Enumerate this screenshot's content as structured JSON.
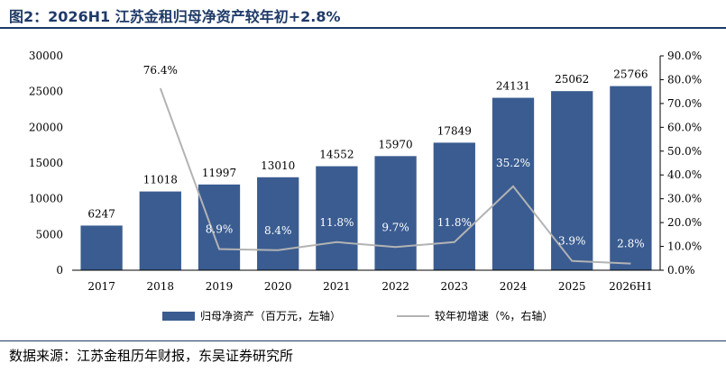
{
  "title": "图2：2026H1 江苏金租归母净资产较年初+2.8%",
  "source": "数据来源：江苏金租历年财报，东吴证券研究所",
  "colors": {
    "bar": "#3a5c91",
    "line": "#b3b3b3",
    "title": "#1f3a68"
  },
  "chart_data": {
    "type": "bar+line",
    "categories": [
      "2017",
      "2018",
      "2019",
      "2020",
      "2021",
      "2022",
      "2023",
      "2024",
      "2025",
      "2026H1"
    ],
    "series": [
      {
        "name": "归母净资产（百万元，左轴）",
        "type": "bar",
        "axis": "left",
        "values": [
          6247,
          11018,
          11997,
          13010,
          14552,
          15970,
          17849,
          24131,
          25062,
          25766
        ],
        "labels": [
          "6247",
          "11018",
          "11997",
          "13010",
          "14552",
          "15970",
          "17849",
          "24131",
          "25062",
          "25766"
        ]
      },
      {
        "name": "较年初增速（%，右轴）",
        "type": "line",
        "axis": "right",
        "values": [
          null,
          76.4,
          8.9,
          8.4,
          11.8,
          9.7,
          11.8,
          35.2,
          3.9,
          2.8
        ],
        "labels": [
          "",
          "76.4%",
          "8.9%",
          "8.4%",
          "11.8%",
          "9.7%",
          "11.8%",
          "35.2%",
          "3.9%",
          "2.8%"
        ]
      }
    ],
    "y_left": {
      "min": 0,
      "max": 30000,
      "ticks": [
        "0",
        "5000",
        "10000",
        "15000",
        "20000",
        "25000",
        "30000"
      ]
    },
    "y_right": {
      "min": 0,
      "max": 90,
      "ticks": [
        "0.0%",
        "10.0%",
        "20.0%",
        "30.0%",
        "40.0%",
        "50.0%",
        "60.0%",
        "70.0%",
        "80.0%",
        "90.0%"
      ]
    },
    "legend_position": "bottom",
    "grid": false
  }
}
